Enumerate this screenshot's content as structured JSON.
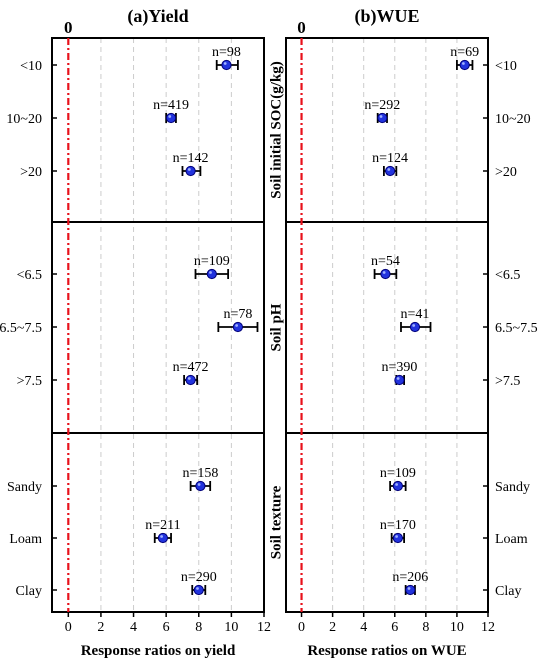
{
  "colors": {
    "marker_fill": "#2233dd",
    "marker_stroke": "#00007a",
    "zero_line": "#e8111b",
    "grid": "#cccccc",
    "axes": "#000000"
  },
  "figure": {
    "zero_marker": "0",
    "row_groups": [
      "Soil initial SOC(g/kg)",
      "Soil pH",
      "Soil texture"
    ]
  },
  "chart_data": [
    {
      "type": "scatter",
      "panel": "left",
      "title": "(a)Yield",
      "xlabel": "Response ratios on yield",
      "xlim": [
        -1,
        12
      ],
      "xticks": [
        0,
        2,
        4,
        6,
        8,
        10,
        12
      ],
      "grid": "vertical dashed",
      "reference_line": 0,
      "points": [
        {
          "category": "<10",
          "group": "Soil initial SOC(g/kg)",
          "n": "n=98",
          "mean": 9.7,
          "ci_low": 9.1,
          "ci_high": 10.4
        },
        {
          "category": "10~20",
          "group": "Soil initial SOC(g/kg)",
          "n": "n=419",
          "mean": 6.3,
          "ci_low": 6.0,
          "ci_high": 6.6
        },
        {
          "category": ">20",
          "group": "Soil initial SOC(g/kg)",
          "n": "n=142",
          "mean": 7.5,
          "ci_low": 7.0,
          "ci_high": 8.1
        },
        {
          "category": "<6.5",
          "group": "Soil pH",
          "n": "n=109",
          "mean": 8.8,
          "ci_low": 7.8,
          "ci_high": 9.8
        },
        {
          "category": "6.5~7.5",
          "group": "Soil pH",
          "n": "n=78",
          "mean": 10.4,
          "ci_low": 9.2,
          "ci_high": 11.6
        },
        {
          "category": ">7.5",
          "group": "Soil pH",
          "n": "n=472",
          "mean": 7.5,
          "ci_low": 7.1,
          "ci_high": 7.9
        },
        {
          "category": "Sandy",
          "group": "Soil texture",
          "n": "n=158",
          "mean": 8.1,
          "ci_low": 7.5,
          "ci_high": 8.7
        },
        {
          "category": "Loam",
          "group": "Soil texture",
          "n": "n=211",
          "mean": 5.8,
          "ci_low": 5.3,
          "ci_high": 6.3
        },
        {
          "category": "Clay",
          "group": "Soil texture",
          "n": "n=290",
          "mean": 8.0,
          "ci_low": 7.6,
          "ci_high": 8.4
        }
      ]
    },
    {
      "type": "scatter",
      "panel": "right",
      "title": "(b)WUE",
      "xlabel": "Response ratios on WUE",
      "xlim": [
        -1,
        12
      ],
      "xticks": [
        0,
        2,
        4,
        6,
        8,
        10,
        12
      ],
      "grid": "vertical dashed",
      "reference_line": 0,
      "points": [
        {
          "category": "<10",
          "group": "Soil initial SOC(g/kg)",
          "n": "n=69",
          "mean": 10.5,
          "ci_low": 10.0,
          "ci_high": 11.0
        },
        {
          "category": "10~20",
          "group": "Soil initial SOC(g/kg)",
          "n": "n=292",
          "mean": 5.2,
          "ci_low": 4.9,
          "ci_high": 5.5
        },
        {
          "category": ">20",
          "group": "Soil initial SOC(g/kg)",
          "n": "n=124",
          "mean": 5.7,
          "ci_low": 5.3,
          "ci_high": 6.1
        },
        {
          "category": "<6.5",
          "group": "Soil pH",
          "n": "n=54",
          "mean": 5.4,
          "ci_low": 4.7,
          "ci_high": 6.1
        },
        {
          "category": "6.5~7.5",
          "group": "Soil pH",
          "n": "n=41",
          "mean": 7.3,
          "ci_low": 6.4,
          "ci_high": 8.3
        },
        {
          "category": ">7.5",
          "group": "Soil pH",
          "n": "n=390",
          "mean": 6.3,
          "ci_low": 6.1,
          "ci_high": 6.6
        },
        {
          "category": "Sandy",
          "group": "Soil texture",
          "n": "n=109",
          "mean": 6.2,
          "ci_low": 5.7,
          "ci_high": 6.7
        },
        {
          "category": "Loam",
          "group": "Soil texture",
          "n": "n=170",
          "mean": 6.2,
          "ci_low": 5.8,
          "ci_high": 6.6
        },
        {
          "category": "Clay",
          "group": "Soil texture",
          "n": "n=206",
          "mean": 7.0,
          "ci_low": 6.7,
          "ci_high": 7.3
        }
      ]
    }
  ]
}
